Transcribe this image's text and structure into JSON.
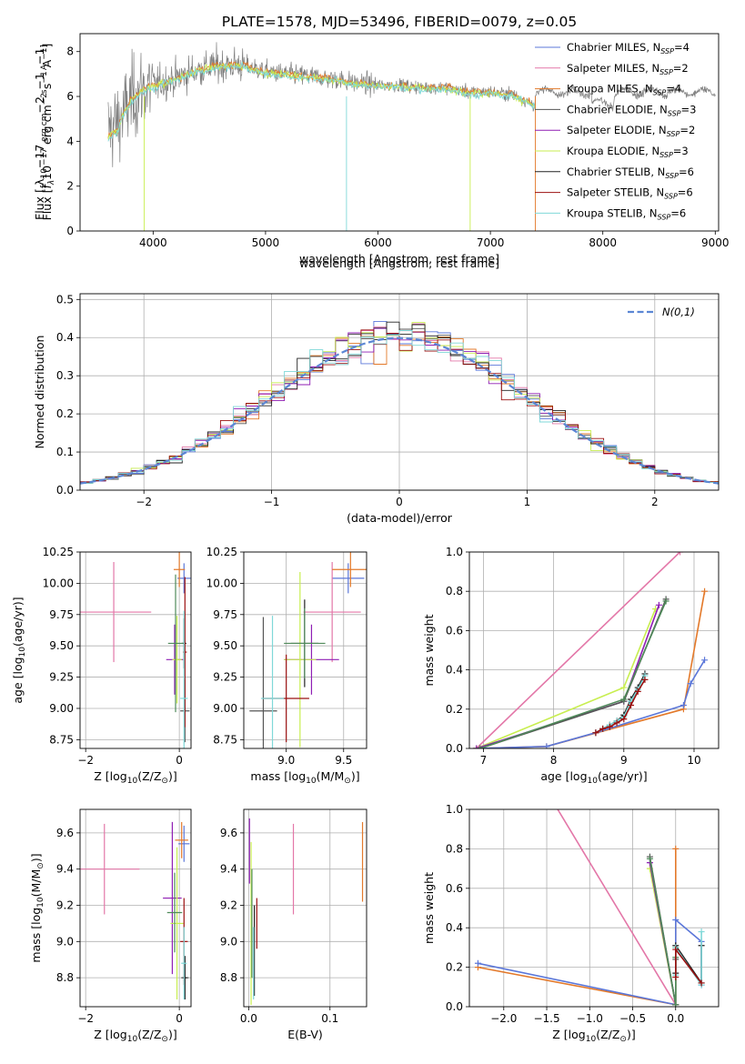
{
  "title": "PLATE=1578, MJD=53496, FIBERID=0079, z=0.05",
  "colors": {
    "chabrier_miles": "#5b77d9",
    "salpeter_miles": "#e377a8",
    "kroupa_miles": "#e3792a",
    "chabrier_elodie": "#555555",
    "salpeter_elodie": "#8f1eb4",
    "kroupa_elodie": "#c8ee50",
    "chabrier_stelib": "#222222",
    "salpeter_stelib": "#9b1010",
    "kroupa_stelib": "#7fd8d8",
    "data": "#808080",
    "gaussian": "#5b86d4",
    "green": "#4f8a5a"
  },
  "chart_data": [
    {
      "id": "spectrum",
      "type": "line",
      "title": "PLATE=1578, MJD=53496, FIBERID=0079, z=0.05",
      "xlabel": "wavelength [Angstrom, rest frame]",
      "ylabel_parts": [
        "Flux [",
        "f",
        "λ",
        "10",
        "−17",
        " erg cm",
        "−2",
        " s",
        "−1",
        " A",
        "−1",
        "]"
      ],
      "xlim": [
        3350,
        9030
      ],
      "ylim": [
        0,
        8.8
      ],
      "xticks": [
        4000,
        5000,
        6000,
        7000,
        8000,
        9000
      ],
      "yticks": [
        0,
        2,
        4,
        6,
        8
      ],
      "legend": [
        {
          "label": "Chabrier MILES, N",
          "sub": "SSP",
          "tail": "=4"
        },
        {
          "label": "Salpeter MILES, N",
          "sub": "SSP",
          "tail": "=2"
        },
        {
          "label": "Kroupa MILES, N",
          "sub": "SSP",
          "tail": "=4"
        },
        {
          "label": "Chabrier ELODIE, N",
          "sub": "SSP",
          "tail": "=3"
        },
        {
          "label": "Salpeter ELODIE, N",
          "sub": "SSP",
          "tail": "=2"
        },
        {
          "label": "Kroupa ELODIE, N",
          "sub": "SSP",
          "tail": "=3"
        },
        {
          "label": "Chabrier STELIB, N",
          "sub": "SSP",
          "tail": "=6"
        },
        {
          "label": "Salpeter STELIB, N",
          "sub": "SSP",
          "tail": "=6"
        },
        {
          "label": "Kroupa STELIB, N",
          "sub": "SSP",
          "tail": "=6"
        }
      ],
      "data_range": [
        3600,
        9000
      ],
      "model_range": [
        3600,
        7400
      ],
      "model_anchors_x": [
        3600,
        3700,
        3800,
        3900,
        4000,
        4200,
        4400,
        4600,
        4800,
        5000,
        5200,
        5400,
        5600,
        5800,
        6000,
        6200,
        6400,
        6600,
        6800,
        7000,
        7200,
        7400
      ],
      "model_anchors_y": [
        4.5,
        4.9,
        5.8,
        6.3,
        6.5,
        6.8,
        7.2,
        7.4,
        7.4,
        7.1,
        7.0,
        6.9,
        6.8,
        6.6,
        6.5,
        6.5,
        6.4,
        6.4,
        6.2,
        6.2,
        6.1,
        5.6
      ]
    },
    {
      "id": "residuals",
      "type": "line",
      "xlabel": "(data-model)/error",
      "ylabel": "Normed distribution",
      "xlim": [
        -2.5,
        2.5
      ],
      "ylim": [
        0,
        0.515
      ],
      "xticks": [
        -2,
        -1,
        0,
        1,
        2
      ],
      "yticks": [
        0.0,
        0.1,
        0.2,
        0.3,
        0.4,
        0.5
      ],
      "legend_label": "N(0,1)",
      "bin_width": 0.1
    },
    {
      "id": "age-vs-z",
      "type": "scatter",
      "xlabel_parts": [
        "Z [log",
        "10",
        "(Z/Z",
        "⊙",
        ")]"
      ],
      "ylabel_parts": [
        "age  [log",
        "10",
        "(age/yr)]"
      ],
      "xlim": [
        -2.12,
        0.25
      ],
      "ylim": [
        8.68,
        10.25
      ],
      "xticks": [
        -2,
        0
      ],
      "yticks": [
        8.75,
        9.0,
        9.25,
        9.5,
        9.75,
        10.0,
        10.25
      ],
      "points": [
        {
          "c": "chabrier_miles",
          "x": 0.1,
          "y": 10.04,
          "xe": 0.14,
          "ye": 0.12
        },
        {
          "c": "salpeter_miles",
          "x": -1.4,
          "y": 9.77,
          "xe": 0.8,
          "ye": 0.4
        },
        {
          "c": "kroupa_miles",
          "x": 0.0,
          "y": 10.11,
          "xe": 0.12,
          "ye": 0.14
        },
        {
          "c": "chabrier_elodie",
          "x": 0.12,
          "y": 8.98,
          "xe": 0.1,
          "ye": 0.25
        },
        {
          "c": "salpeter_elodie",
          "x": -0.1,
          "y": 9.39,
          "xe": 0.18,
          "ye": 0.28
        },
        {
          "c": "kroupa_elodie",
          "x": -0.05,
          "y": 9.39,
          "xe": 0.1,
          "ye": 0.35
        },
        {
          "c": "chabrier_stelib",
          "x": 0.1,
          "y": 9.52,
          "xe": 0.05,
          "ye": 0.2
        },
        {
          "c": "salpeter_stelib",
          "x": 0.12,
          "y": 9.45,
          "xe": 0.04,
          "ye": 0.6
        },
        {
          "c": "kroupa_stelib",
          "x": 0.1,
          "y": 9.08,
          "xe": 0.08,
          "ye": 0.7
        },
        {
          "c": "green",
          "x": -0.08,
          "y": 9.52,
          "xe": 0.16,
          "ye": 0.55
        }
      ]
    },
    {
      "id": "age-vs-mass",
      "type": "scatter",
      "xlabel_parts": [
        "mass [log",
        "10",
        "(M/M",
        "⊙",
        ")]"
      ],
      "ylabel": "",
      "xlim": [
        8.63,
        9.7
      ],
      "ylim": [
        8.68,
        10.25
      ],
      "xticks": [
        9.0,
        9.5
      ],
      "yticks": [
        8.75,
        9.0,
        9.25,
        9.5,
        9.75,
        10.0,
        10.25
      ],
      "points": [
        {
          "c": "chabrier_miles",
          "x": 9.54,
          "y": 10.04,
          "xe": 0.14,
          "ye": 0.12
        },
        {
          "c": "salpeter_miles",
          "x": 9.4,
          "y": 9.77,
          "xe": 0.25,
          "ye": 0.4
        },
        {
          "c": "kroupa_miles",
          "x": 9.56,
          "y": 10.11,
          "xe": 0.16,
          "ye": 0.14
        },
        {
          "c": "chabrier_elodie",
          "x": 8.8,
          "y": 8.98,
          "xe": 0.12,
          "ye": 0.75
        },
        {
          "c": "salpeter_elodie",
          "x": 9.22,
          "y": 9.39,
          "xe": 0.24,
          "ye": 0.28
        },
        {
          "c": "kroupa_elodie",
          "x": 9.12,
          "y": 9.39,
          "xe": 0.14,
          "ye": 0.7
        },
        {
          "c": "chabrier_stelib",
          "x": 9.16,
          "y": 9.52,
          "xe": 0.12,
          "ye": 0.35
        },
        {
          "c": "salpeter_stelib",
          "x": 9.0,
          "y": 9.08,
          "xe": 0.2,
          "ye": 0.35
        },
        {
          "c": "kroupa_stelib",
          "x": 8.88,
          "y": 9.08,
          "xe": 0.1,
          "ye": 0.66
        },
        {
          "c": "green",
          "x": 9.16,
          "y": 9.52,
          "xe": 0.18,
          "ye": 0.28
        }
      ]
    },
    {
      "id": "mass-weight-vs-age",
      "type": "line",
      "xlabel_parts": [
        "age  [log",
        "10",
        "(age/yr)]"
      ],
      "ylabel": "mass weight",
      "xlim": [
        6.8,
        10.35
      ],
      "ylim": [
        0,
        1.0
      ],
      "xticks": [
        7,
        8,
        9,
        10
      ],
      "yticks": [
        0.0,
        0.2,
        0.4,
        0.6,
        0.8,
        1.0
      ],
      "series": [
        {
          "c": "salpeter_miles",
          "x": [
            6.9,
            9.8
          ],
          "y": [
            0.0,
            1.0
          ]
        },
        {
          "c": "kroupa_miles",
          "x": [
            6.9,
            7.9,
            9.85,
            10.15
          ],
          "y": [
            0.0,
            0.01,
            0.2,
            0.8
          ]
        },
        {
          "c": "chabrier_miles",
          "x": [
            6.9,
            7.9,
            8.6,
            9.85,
            9.95,
            10.15
          ],
          "y": [
            0.0,
            0.01,
            0.08,
            0.22,
            0.33,
            0.45
          ]
        },
        {
          "c": "kroupa_elodie",
          "x": [
            6.9,
            9.0,
            9.45
          ],
          "y": [
            0.0,
            0.31,
            0.71
          ]
        },
        {
          "c": "salpeter_elodie",
          "x": [
            6.9,
            9.0,
            9.5
          ],
          "y": [
            0.0,
            0.24,
            0.73
          ]
        },
        {
          "c": "chabrier_elodie",
          "x": [
            6.95,
            9.0,
            9.6
          ],
          "y": [
            0.0,
            0.24,
            0.76
          ]
        },
        {
          "c": "green",
          "x": [
            6.95,
            9.0,
            9.6
          ],
          "y": [
            0.0,
            0.25,
            0.75
          ]
        },
        {
          "c": "chabrier_stelib",
          "x": [
            8.6,
            8.7,
            8.8,
            8.9,
            9.0,
            9.1,
            9.2,
            9.3
          ],
          "y": [
            0.08,
            0.1,
            0.12,
            0.14,
            0.17,
            0.25,
            0.31,
            0.38
          ]
        },
        {
          "c": "kroupa_stelib",
          "x": [
            8.6,
            8.7,
            8.8,
            8.9,
            9.0,
            9.1,
            9.2,
            9.3
          ],
          "y": [
            0.08,
            0.1,
            0.12,
            0.14,
            0.16,
            0.24,
            0.3,
            0.37
          ]
        },
        {
          "c": "salpeter_stelib",
          "x": [
            8.6,
            8.7,
            8.8,
            8.9,
            9.0,
            9.1,
            9.2,
            9.3
          ],
          "y": [
            0.08,
            0.1,
            0.11,
            0.13,
            0.15,
            0.22,
            0.29,
            0.35
          ]
        }
      ]
    },
    {
      "id": "mass-vs-z",
      "type": "scatter",
      "xlabel_parts": [
        "Z [log",
        "10",
        "(Z/Z",
        "⊙",
        ")]"
      ],
      "ylabel_parts": [
        "mass [log",
        "10",
        "(M/M",
        "⊙",
        ")]"
      ],
      "xlim": [
        -2.12,
        0.25
      ],
      "ylim": [
        8.64,
        9.73
      ],
      "xticks": [
        -2,
        0
      ],
      "yticks": [
        8.8,
        9.0,
        9.2,
        9.4,
        9.6
      ],
      "points": [
        {
          "c": "chabrier_miles",
          "x": 0.1,
          "y": 9.54,
          "xe": 0.12,
          "ye": 0.1
        },
        {
          "c": "salpeter_miles",
          "x": -1.6,
          "y": 9.4,
          "xe": 0.75,
          "ye": 0.25
        },
        {
          "c": "kroupa_miles",
          "x": 0.05,
          "y": 9.56,
          "xe": 0.14,
          "ye": 0.1
        },
        {
          "c": "chabrier_elodie",
          "x": 0.12,
          "y": 8.8,
          "xe": 0.08,
          "ye": 0.12
        },
        {
          "c": "salpeter_elodie",
          "x": -0.15,
          "y": 9.24,
          "xe": 0.2,
          "ye": 0.42
        },
        {
          "c": "kroupa_elodie",
          "x": -0.05,
          "y": 9.1,
          "xe": 0.14,
          "ye": 0.42
        },
        {
          "c": "chabrier_stelib",
          "x": 0.12,
          "y": 8.8,
          "xe": 0.05,
          "ye": 0.12
        },
        {
          "c": "salpeter_stelib",
          "x": 0.1,
          "y": 9.0,
          "xe": 0.08,
          "ye": 0.24
        },
        {
          "c": "kroupa_stelib",
          "x": 0.1,
          "y": 8.88,
          "xe": 0.06,
          "ye": 0.2
        },
        {
          "c": "green",
          "x": -0.1,
          "y": 9.16,
          "xe": 0.16,
          "ye": 0.22
        }
      ]
    },
    {
      "id": "mass-vs-ebv",
      "type": "scatter",
      "xlabel": "E(B-V)",
      "ylabel": "",
      "xlim": [
        -0.006,
        0.145
      ],
      "ylim": [
        8.64,
        9.73
      ],
      "xticks": [
        0.0,
        0.1
      ],
      "yticks": [
        8.8,
        9.0,
        9.2,
        9.4,
        9.6
      ],
      "points": [
        {
          "c": "salpeter_miles",
          "x": 0.055,
          "y": 9.4,
          "xe": 0,
          "ye": 0.25
        },
        {
          "c": "kroupa_miles",
          "x": 0.14,
          "y": 9.44,
          "xe": 0,
          "ye": 0.22
        },
        {
          "c": "salpeter_elodie",
          "x": 0.001,
          "y": 9.5,
          "xe": 0,
          "ye": 0.18
        },
        {
          "c": "kroupa_elodie",
          "x": 0.003,
          "y": 9.1,
          "xe": 0,
          "ye": 0.45
        },
        {
          "c": "salpeter_stelib",
          "x": 0.01,
          "y": 9.1,
          "xe": 0,
          "ye": 0.14
        },
        {
          "c": "chabrier_stelib",
          "x": 0.007,
          "y": 8.95,
          "xe": 0,
          "ye": 0.25
        },
        {
          "c": "kroupa_stelib",
          "x": 0.006,
          "y": 8.88,
          "xe": 0,
          "ye": 0.2
        },
        {
          "c": "green",
          "x": 0.004,
          "y": 9.1,
          "xe": 0,
          "ye": 0.3
        }
      ]
    },
    {
      "id": "mass-weight-vs-z",
      "type": "line",
      "xlabel_parts": [
        "Z [log",
        "10",
        "(Z/Z",
        "⊙",
        ")]"
      ],
      "ylabel": "mass weight",
      "xlim": [
        -2.4,
        0.5
      ],
      "ylim": [
        0,
        1.0
      ],
      "xticks": [
        -2.0,
        -1.5,
        -1.0,
        -0.5,
        0.0
      ],
      "yticks": [
        0.0,
        0.2,
        0.4,
        0.6,
        0.8,
        1.0
      ],
      "series": [
        {
          "c": "salpeter_miles",
          "x": [
            -1.4,
            0.0
          ],
          "y": [
            1.02,
            0.01
          ]
        },
        {
          "c": "kroupa_miles",
          "x": [
            -2.3,
            0.0,
            0.0
          ],
          "y": [
            0.2,
            0.01,
            0.8
          ]
        },
        {
          "c": "chabrier_miles",
          "x": [
            -2.3,
            0.0,
            0.0,
            0.3,
            0.3
          ],
          "y": [
            0.22,
            0.01,
            0.44,
            0.33,
            0.11
          ]
        },
        {
          "c": "kroupa_elodie",
          "x": [
            -0.3,
            0.0,
            0.0
          ],
          "y": [
            0.7,
            0.01,
            0.3
          ]
        },
        {
          "c": "salpeter_elodie",
          "x": [
            -0.3,
            0.0
          ],
          "y": [
            0.73,
            0.01
          ]
        },
        {
          "c": "chabrier_elodie",
          "x": [
            -0.3,
            0.0,
            0.0
          ],
          "y": [
            0.76,
            0.01,
            0.24
          ]
        },
        {
          "c": "green",
          "x": [
            -0.3,
            0.0,
            0.0
          ],
          "y": [
            0.75,
            0.01,
            0.25
          ]
        },
        {
          "c": "chabrier_stelib",
          "x": [
            0.0,
            0.0,
            0.3,
            0.3
          ],
          "y": [
            0.17,
            0.31,
            0.12,
            0.31
          ]
        },
        {
          "c": "kroupa_stelib",
          "x": [
            0.0,
            0.0,
            0.3,
            0.3
          ],
          "y": [
            0.16,
            0.3,
            0.11,
            0.38
          ]
        },
        {
          "c": "salpeter_stelib",
          "x": [
            0.0,
            0.0,
            0.3
          ],
          "y": [
            0.15,
            0.29,
            0.12
          ]
        }
      ]
    }
  ]
}
